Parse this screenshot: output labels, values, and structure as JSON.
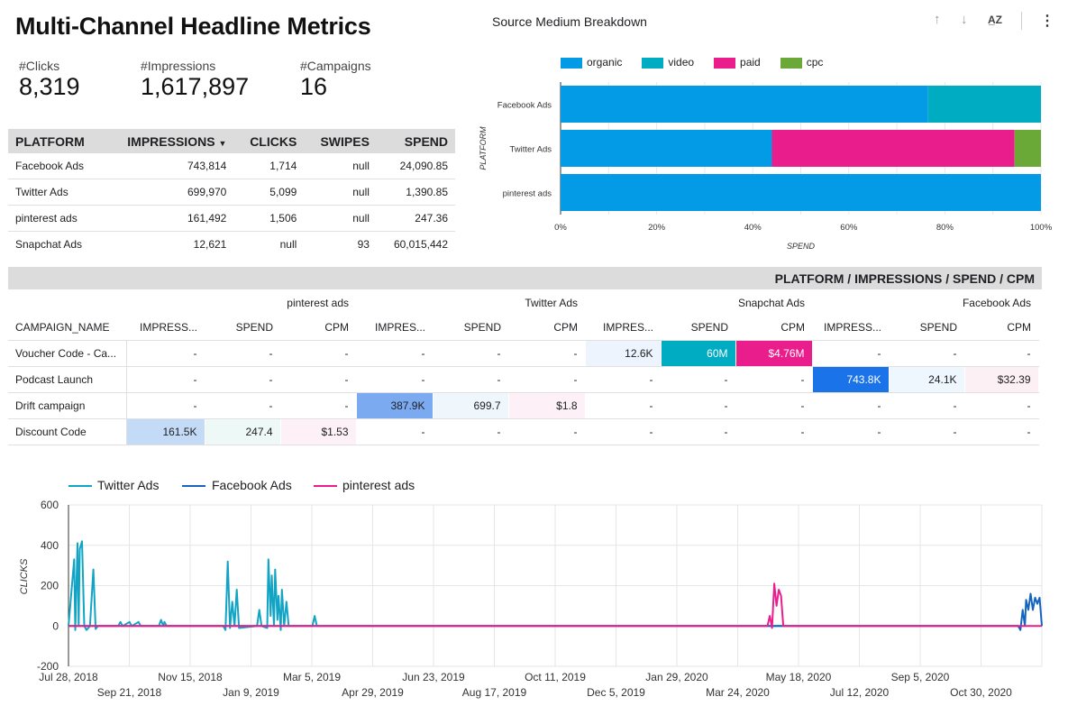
{
  "title": "Multi-Channel Headline Metrics",
  "kpis": [
    {
      "label": "#Clicks",
      "value": "8,319"
    },
    {
      "label": "#Impressions",
      "value": "1,617,897"
    },
    {
      "label": "#Campaigns",
      "value": "16"
    }
  ],
  "platform_table": {
    "headers": [
      "PLATFORM",
      "IMPRESSIONS",
      "CLICKS",
      "SWIPES",
      "SPEND"
    ],
    "sort_icon": "caret-down-icon",
    "rows": [
      [
        "Facebook Ads",
        "743,814",
        "1,714",
        "null",
        "24,090.85"
      ],
      [
        "Twitter Ads",
        "699,970",
        "5,099",
        "null",
        "1,390.85"
      ],
      [
        "pinterest ads",
        "161,492",
        "1,506",
        "null",
        "247.36"
      ],
      [
        "Snapchat Ads",
        "12,621",
        "null",
        "93",
        "60,015,442"
      ]
    ]
  },
  "bar_chart": {
    "title": "Source Medium Breakdown",
    "toolbar_icons": [
      "arrow-up-icon",
      "arrow-down-icon",
      "sort-az-icon",
      "more-vert-icon"
    ],
    "chart_data": {
      "type": "bar",
      "orientation": "horizontal-stacked-100",
      "categories": [
        "Facebook Ads",
        "Twitter Ads",
        "pinterest ads"
      ],
      "series": [
        {
          "name": "organic",
          "color": "#039be5",
          "values": [
            76.5,
            44,
            100
          ]
        },
        {
          "name": "video",
          "color": "#00acc1",
          "values": [
            23.5,
            0,
            0
          ]
        },
        {
          "name": "paid",
          "color": "#e91e8c",
          "values": [
            0,
            50.5,
            0
          ]
        },
        {
          "name": "cpc",
          "color": "#6aa837",
          "values": [
            0,
            5.5,
            0
          ]
        }
      ],
      "xlabel": "SPEND",
      "ylabel": "PLATFORM",
      "x_ticks": [
        "0%",
        "20%",
        "40%",
        "60%",
        "80%",
        "100%"
      ],
      "xlim": [
        0,
        100
      ],
      "legend": "top"
    }
  },
  "pivot": {
    "title": "PLATFORM / IMPRESSIONS / SPEND / CPM",
    "row_header": "CAMPAIGN_NAME",
    "groups": [
      "pinterest ads",
      "Twitter Ads",
      "Snapchat Ads",
      "Facebook Ads"
    ],
    "sub_headers": [
      "IMPRESS...",
      "SPEND",
      "CPM",
      "IMPRES...",
      "SPEND",
      "CPM",
      "IMPRES...",
      "SPEND",
      "CPM",
      "IMPRESS...",
      "SPEND",
      "CPM"
    ],
    "rows": [
      {
        "name": "Voucher Code - Ca...",
        "cells": [
          "-",
          "-",
          "-",
          "-",
          "-",
          "-",
          "12.6K",
          "60M",
          "$4.76M",
          "-",
          "-",
          "-"
        ]
      },
      {
        "name": "Podcast Launch",
        "cells": [
          "-",
          "-",
          "-",
          "-",
          "-",
          "-",
          "-",
          "-",
          "-",
          "743.8K",
          "24.1K",
          "$32.39"
        ]
      },
      {
        "name": "Drift campaign",
        "cells": [
          "-",
          "-",
          "-",
          "387.9K",
          "699.7",
          "$1.8",
          "-",
          "-",
          "-",
          "-",
          "-",
          "-"
        ]
      },
      {
        "name": "Discount Code",
        "cells": [
          "161.5K",
          "247.4",
          "$1.53",
          "-",
          "-",
          "-",
          "-",
          "-",
          "-",
          "-",
          "-",
          "-"
        ]
      }
    ],
    "cell_colors": [
      [
        null,
        null,
        null,
        null,
        null,
        null,
        "#eef4fd",
        "#00acc1",
        "#e91e8c",
        null,
        null,
        null
      ],
      [
        null,
        null,
        null,
        null,
        null,
        null,
        null,
        null,
        null,
        "#1a73e8",
        "#eef7fd",
        "#fdf0f5"
      ],
      [
        null,
        null,
        null,
        "#7baaf0",
        "#eff7fd",
        "#fdf1f7",
        null,
        null,
        null,
        null,
        null,
        null
      ],
      [
        "#c4dbf8",
        "#eef8f6",
        "#fdf0f6",
        null,
        null,
        null,
        null,
        null,
        null,
        null,
        null,
        null
      ]
    ]
  },
  "line_chart": {
    "chart_data": {
      "type": "line",
      "ylabel": "CLICKS",
      "ylim": [
        -200,
        600
      ],
      "y_ticks": [
        "600",
        "400",
        "200",
        "0",
        "-200"
      ],
      "x_ticks_top": [
        "Jul 28, 2018",
        "Nov 15, 2018",
        "Mar 5, 2019",
        "Jun 23, 2019",
        "Oct 11, 2019",
        "Jan 29, 2020",
        "May 18, 2020",
        "Sep 5, 2020"
      ],
      "x_ticks_bottom": [
        "Sep 21, 2018",
        "Jan 9, 2019",
        "Apr 29, 2019",
        "Aug 17, 2019",
        "Dec 5, 2019",
        "Mar 24, 2020",
        "Jul 12, 2020",
        "Oct 30, 2020"
      ],
      "series": [
        {
          "name": "Twitter Ads",
          "color": "#12a4c4",
          "points": [
            [
              "2018-07-28",
              0
            ],
            [
              "2018-08-02",
              330
            ],
            [
              "2018-08-03",
              -20
            ],
            [
              "2018-08-05",
              410
            ],
            [
              "2018-08-06",
              0
            ],
            [
              "2018-08-07",
              380
            ],
            [
              "2018-08-09",
              420
            ],
            [
              "2018-08-11",
              0
            ],
            [
              "2018-08-13",
              -20
            ],
            [
              "2018-08-16",
              0
            ],
            [
              "2018-08-19",
              280
            ],
            [
              "2018-08-21",
              -15
            ],
            [
              "2018-08-23",
              0
            ],
            [
              "2018-09-10",
              0
            ],
            [
              "2018-09-12",
              20
            ],
            [
              "2018-09-14",
              0
            ],
            [
              "2018-09-20",
              20
            ],
            [
              "2018-09-22",
              0
            ],
            [
              "2018-09-28",
              20
            ],
            [
              "2018-09-30",
              0
            ],
            [
              "2018-10-16",
              0
            ],
            [
              "2018-10-18",
              30
            ],
            [
              "2018-10-20",
              0
            ],
            [
              "2018-10-21",
              20
            ],
            [
              "2018-10-23",
              0
            ],
            [
              "2018-12-12",
              0
            ],
            [
              "2018-12-14",
              -20
            ],
            [
              "2018-12-16",
              320
            ],
            [
              "2018-12-18",
              -10
            ],
            [
              "2018-12-20",
              120
            ],
            [
              "2018-12-22",
              0
            ],
            [
              "2018-12-24",
              180
            ],
            [
              "2018-12-26",
              -10
            ],
            [
              "2019-01-11",
              0
            ],
            [
              "2019-01-13",
              80
            ],
            [
              "2019-01-15",
              0
            ],
            [
              "2019-01-20",
              -10
            ],
            [
              "2019-01-21",
              330
            ],
            [
              "2019-01-23",
              50
            ],
            [
              "2019-01-24",
              250
            ],
            [
              "2019-01-26",
              0
            ],
            [
              "2019-01-27",
              280
            ],
            [
              "2019-01-29",
              30
            ],
            [
              "2019-01-30",
              150
            ],
            [
              "2019-02-01",
              -20
            ],
            [
              "2019-02-02",
              180
            ],
            [
              "2019-02-04",
              0
            ],
            [
              "2019-02-06",
              120
            ],
            [
              "2019-02-08",
              0
            ],
            [
              "2019-03-01",
              0
            ],
            [
              "2019-03-03",
              50
            ],
            [
              "2019-03-05",
              0
            ],
            [
              "2020-04-10",
              0
            ],
            [
              "2020-11-15",
              0
            ]
          ]
        },
        {
          "name": "Facebook Ads",
          "color": "#1565c0",
          "points": [
            [
              "2018-07-28",
              0
            ],
            [
              "2020-11-15",
              0
            ],
            [
              "2020-11-17",
              -20
            ],
            [
              "2020-11-19",
              80
            ],
            [
              "2020-11-21",
              0
            ],
            [
              "2020-11-22",
              130
            ],
            [
              "2020-11-24",
              80
            ],
            [
              "2020-11-26",
              160
            ],
            [
              "2020-11-28",
              80
            ],
            [
              "2020-11-30",
              140
            ],
            [
              "2020-12-02",
              110
            ],
            [
              "2020-12-04",
              140
            ],
            [
              "2020-12-06",
              0
            ]
          ]
        },
        {
          "name": "pinterest ads",
          "color": "#e91e8c",
          "points": [
            [
              "2018-07-28",
              0
            ],
            [
              "2020-04-07",
              0
            ],
            [
              "2020-04-09",
              50
            ],
            [
              "2020-04-11",
              -10
            ],
            [
              "2020-04-13",
              210
            ],
            [
              "2020-04-15",
              100
            ],
            [
              "2020-04-17",
              180
            ],
            [
              "2020-04-19",
              150
            ],
            [
              "2020-04-21",
              0
            ],
            [
              "2020-12-06",
              0
            ]
          ]
        }
      ],
      "xlim": [
        "2018-07-28",
        "2020-12-06"
      ],
      "legend": "top-left"
    }
  }
}
